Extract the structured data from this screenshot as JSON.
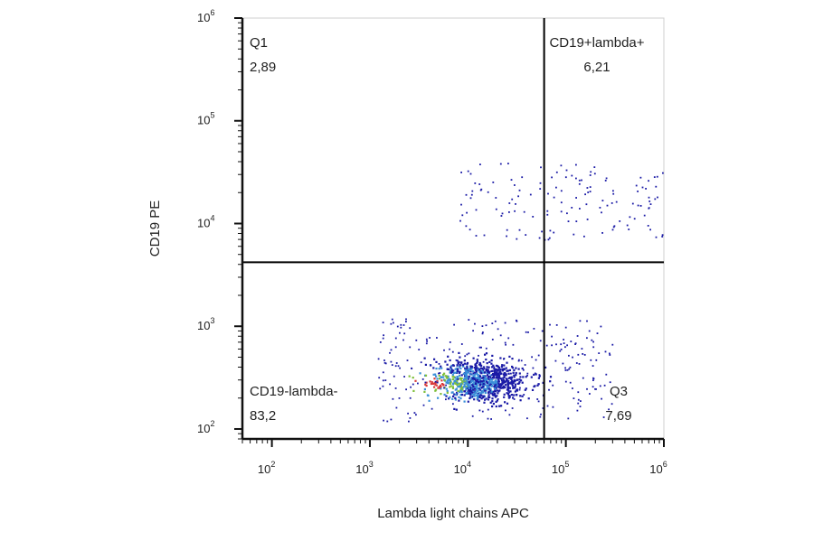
{
  "chart_data": {
    "type": "scatter",
    "xlabel": "Lambda light chains  APC",
    "ylabel": "CD19 PE",
    "x_scale": "log",
    "y_scale": "log",
    "xlim": [
      50,
      1000000
    ],
    "ylim": [
      80,
      1000000
    ],
    "x_ticks": [
      {
        "base": "10",
        "exp": "2",
        "value": 100
      },
      {
        "base": "10",
        "exp": "3",
        "value": 1000
      },
      {
        "base": "10",
        "exp": "4",
        "value": 10000
      },
      {
        "base": "10",
        "exp": "5",
        "value": 100000
      },
      {
        "base": "10",
        "exp": "6",
        "value": 1000000
      }
    ],
    "y_ticks": [
      {
        "base": "10",
        "exp": "2",
        "value": 100
      },
      {
        "base": "10",
        "exp": "3",
        "value": 1000
      },
      {
        "base": "10",
        "exp": "4",
        "value": 10000
      },
      {
        "base": "10",
        "exp": "5",
        "value": 100000
      },
      {
        "base": "10",
        "exp": "6",
        "value": 1000000
      }
    ],
    "gates": {
      "x_threshold": 60000,
      "y_threshold": 4200
    },
    "quadrants": [
      {
        "name": "Q1",
        "value": "2,89",
        "position": "top-left"
      },
      {
        "name": "CD19+lambda+",
        "value": "6,21",
        "position": "top-right"
      },
      {
        "name": "CD19-lambda-",
        "value": "83,2",
        "position": "bottom-left"
      },
      {
        "name": "Q3",
        "value": "7,69",
        "position": "bottom-right"
      }
    ],
    "populations": [
      {
        "x_range": [
          2000,
          80000
        ],
        "y_range": [
          150,
          600
        ],
        "count": 900,
        "density": "high"
      },
      {
        "x_range": [
          1200,
          300000
        ],
        "y_range": [
          120,
          1200
        ],
        "count": 260,
        "density": "low"
      },
      {
        "x_range": [
          8000,
          1000000
        ],
        "y_range": [
          7000,
          40000
        ],
        "count": 140,
        "density": "low"
      }
    ],
    "colors": {
      "low": "#1a1aa6",
      "mid": "#3a8fd8",
      "high": "#7fbf3a",
      "peak": "#d93a3a",
      "axis": "#111111",
      "gate": "#000000"
    },
    "grid": false,
    "legend": "none"
  }
}
